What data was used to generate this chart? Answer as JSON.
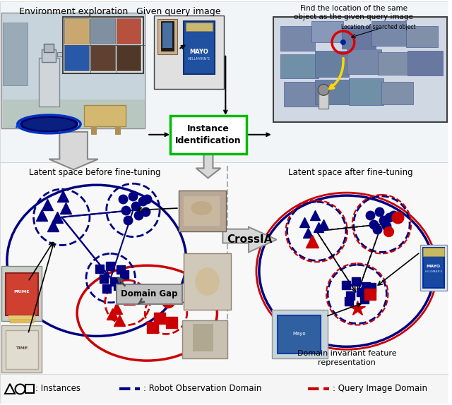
{
  "colors": {
    "navy": "#000080",
    "red": "#CC0000",
    "black": "#000000",
    "white": "#ffffff",
    "green_box": "#00BB00",
    "gold": "#FFD700",
    "gray_arrow": "#b0b0b0",
    "light_gray": "#e0e0e0",
    "bg_top": "#e8eef4",
    "bg_bottom": "#f5f5f5"
  },
  "labels": {
    "env_explore": "Environment exploration",
    "query_image": "Given query image",
    "find_loc": "Find the location of the same\nobject as the given query image",
    "loc_searched": "Location of searched object",
    "instance_id": "Instance\nIdentification",
    "crossia": "CrossIA",
    "before": "Latent space before fine-tuning",
    "after": "Latent space after fine-tuning",
    "domain_gap": "Domain Gap",
    "domain_inv": "Domain invariant feature\nrepresentation"
  }
}
